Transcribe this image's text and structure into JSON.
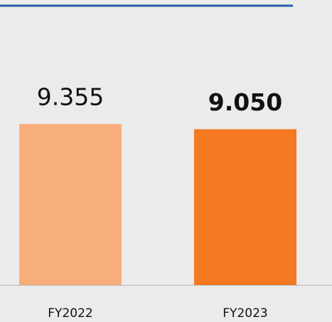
{
  "chart_data": {
    "type": "bar",
    "categories": [
      "FY2022",
      "FY2023"
    ],
    "values": [
      9.355,
      9.05
    ],
    "value_labels": [
      "9.355",
      "9.050"
    ],
    "colors": [
      "#f8ae7a",
      "#f47920"
    ]
  }
}
